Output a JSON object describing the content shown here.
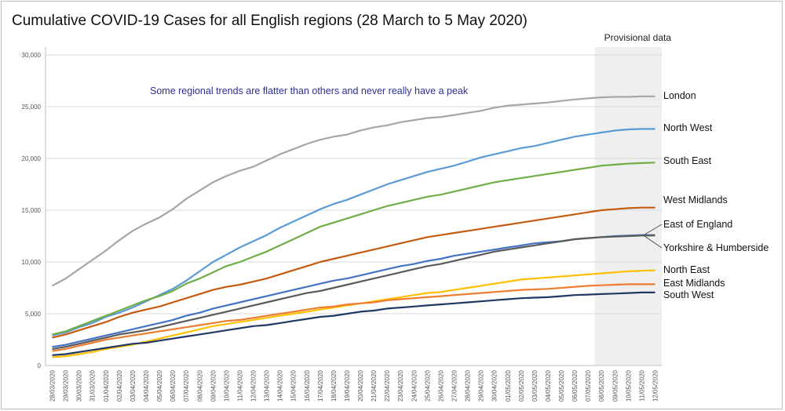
{
  "title": "Cumulative COVID-19 Cases for all English regions (28 March to 5 May 2020)",
  "chart_data": {
    "type": "line",
    "title": "Cumulative COVID-19 Cases for all English regions (28 March to 5 May 2020)",
    "xlabel": "",
    "ylabel": "",
    "ylim": [
      0,
      30000
    ],
    "yticks": [
      0,
      5000,
      10000,
      15000,
      20000,
      25000,
      30000
    ],
    "ytick_labels": [
      "0",
      "5,000",
      "10,000",
      "15,000",
      "20,000",
      "25,000",
      "30,000"
    ],
    "grid": true,
    "legend": "direct labels at right end of lines",
    "annotation": "Some regional trends are flatter than others and never really have a peak",
    "shaded_region": {
      "label": "Provisional data",
      "from": "08/05/2020",
      "to": "12/05/2020"
    },
    "x": [
      "28/03/2020",
      "29/03/2020",
      "30/03/2020",
      "31/03/2020",
      "01/04/2020",
      "02/04/2020",
      "03/04/2020",
      "04/04/2020",
      "05/04/2020",
      "06/04/2020",
      "07/04/2020",
      "08/04/2020",
      "09/04/2020",
      "10/04/2020",
      "11/04/2020",
      "12/04/2020",
      "13/04/2020",
      "14/04/2020",
      "15/04/2020",
      "16/04/2020",
      "17/04/2020",
      "18/04/2020",
      "19/04/2020",
      "20/04/2020",
      "21/04/2020",
      "22/04/2020",
      "23/04/2020",
      "24/04/2020",
      "25/04/2020",
      "26/04/2020",
      "27/04/2020",
      "28/04/2020",
      "29/04/2020",
      "30/04/2020",
      "01/05/2020",
      "02/05/2020",
      "03/05/2020",
      "04/05/2020",
      "05/05/2020",
      "06/05/2020",
      "07/05/2020",
      "08/05/2020",
      "09/05/2020",
      "10/05/2020",
      "11/05/2020",
      "12/05/2020"
    ],
    "series": [
      {
        "name": "London",
        "color": "#a6a6a6",
        "values": [
          7700,
          8400,
          9300,
          10200,
          11100,
          12100,
          13000,
          13700,
          14300,
          15100,
          16100,
          16900,
          17700,
          18300,
          18800,
          19200,
          19800,
          20400,
          20900,
          21400,
          21800,
          22100,
          22300,
          22700,
          23000,
          23200,
          23500,
          23700,
          23900,
          24000,
          24200,
          24400,
          24600,
          24900,
          25100,
          25200,
          25300,
          25400,
          25550,
          25700,
          25800,
          25900,
          25950,
          25950,
          26000,
          26000
        ]
      },
      {
        "name": "North West",
        "color": "#5b9bd5",
        "values": [
          2900,
          3200,
          3700,
          4100,
          4700,
          5100,
          5600,
          6200,
          6800,
          7400,
          8200,
          9100,
          10000,
          10700,
          11400,
          12000,
          12600,
          13300,
          13900,
          14500,
          15100,
          15600,
          16000,
          16500,
          17000,
          17500,
          17900,
          18300,
          18700,
          19000,
          19300,
          19700,
          20100,
          20400,
          20700,
          21000,
          21200,
          21500,
          21800,
          22100,
          22300,
          22500,
          22700,
          22800,
          22850,
          22850
        ]
      },
      {
        "name": "South East",
        "color": "#70ad47",
        "values": [
          3000,
          3300,
          3800,
          4300,
          4800,
          5300,
          5800,
          6300,
          6700,
          7200,
          7900,
          8400,
          9000,
          9600,
          10000,
          10500,
          11000,
          11600,
          12200,
          12800,
          13400,
          13800,
          14200,
          14600,
          15000,
          15400,
          15700,
          16000,
          16300,
          16500,
          16800,
          17100,
          17400,
          17700,
          17900,
          18100,
          18300,
          18500,
          18700,
          18900,
          19100,
          19300,
          19400,
          19500,
          19550,
          19600
        ]
      },
      {
        "name": "West Midlands",
        "color": "#c55a11",
        "values": [
          2700,
          3000,
          3400,
          3800,
          4200,
          4700,
          5100,
          5400,
          5700,
          6100,
          6500,
          6900,
          7300,
          7600,
          7800,
          8100,
          8400,
          8800,
          9200,
          9600,
          10000,
          10300,
          10600,
          10900,
          11200,
          11500,
          11800,
          12100,
          12400,
          12600,
          12800,
          13000,
          13200,
          13400,
          13600,
          13800,
          14000,
          14200,
          14400,
          14600,
          14800,
          15000,
          15100,
          15200,
          15250,
          15250
        ]
      },
      {
        "name": "East of England",
        "color": "#4472c4",
        "values": [
          1800,
          2000,
          2300,
          2600,
          2900,
          3200,
          3500,
          3800,
          4100,
          4400,
          4800,
          5100,
          5500,
          5800,
          6100,
          6400,
          6700,
          7000,
          7300,
          7600,
          7900,
          8200,
          8400,
          8700,
          9000,
          9300,
          9600,
          9800,
          10100,
          10300,
          10600,
          10800,
          11000,
          11200,
          11400,
          11600,
          11800,
          11900,
          12000,
          12200,
          12300,
          12400,
          12500,
          12550,
          12600,
          12600
        ]
      },
      {
        "name": "Yorkshire & Humberside",
        "color": "#5a5a5a",
        "values": [
          1600,
          1800,
          2100,
          2400,
          2700,
          3000,
          3200,
          3400,
          3700,
          4000,
          4300,
          4600,
          4900,
          5200,
          5500,
          5800,
          6100,
          6400,
          6700,
          7000,
          7200,
          7500,
          7800,
          8100,
          8400,
          8700,
          9000,
          9300,
          9600,
          9800,
          10100,
          10400,
          10700,
          11000,
          11200,
          11400,
          11600,
          11800,
          12000,
          12200,
          12300,
          12400,
          12450,
          12500,
          12550,
          12550
        ]
      },
      {
        "name": "North East",
        "color": "#ffc000",
        "values": [
          800,
          900,
          1100,
          1300,
          1600,
          1800,
          2000,
          2300,
          2600,
          2900,
          3200,
          3500,
          3800,
          4000,
          4200,
          4400,
          4600,
          4800,
          5000,
          5200,
          5400,
          5600,
          5800,
          6000,
          6200,
          6400,
          6600,
          6800,
          7000,
          7100,
          7300,
          7500,
          7700,
          7900,
          8100,
          8300,
          8400,
          8500,
          8600,
          8700,
          8800,
          8900,
          9000,
          9100,
          9150,
          9200
        ]
      },
      {
        "name": "East Midlands",
        "color": "#ed7d31",
        "values": [
          1400,
          1600,
          1900,
          2200,
          2500,
          2700,
          2900,
          3100,
          3300,
          3500,
          3700,
          3900,
          4100,
          4300,
          4400,
          4600,
          4800,
          5000,
          5200,
          5400,
          5600,
          5700,
          5900,
          6000,
          6100,
          6300,
          6400,
          6500,
          6600,
          6700,
          6800,
          6900,
          7000,
          7100,
          7200,
          7300,
          7350,
          7400,
          7500,
          7600,
          7700,
          7750,
          7800,
          7850,
          7850,
          7850
        ]
      },
      {
        "name": "South West",
        "color": "#203864",
        "values": [
          1000,
          1100,
          1300,
          1500,
          1700,
          1900,
          2100,
          2200,
          2400,
          2600,
          2800,
          3000,
          3200,
          3400,
          3600,
          3800,
          3900,
          4100,
          4300,
          4500,
          4700,
          4800,
          5000,
          5200,
          5300,
          5500,
          5600,
          5700,
          5800,
          5900,
          6000,
          6100,
          6200,
          6300,
          6400,
          6500,
          6550,
          6600,
          6700,
          6800,
          6850,
          6900,
          6950,
          7000,
          7050,
          7050
        ]
      }
    ]
  }
}
